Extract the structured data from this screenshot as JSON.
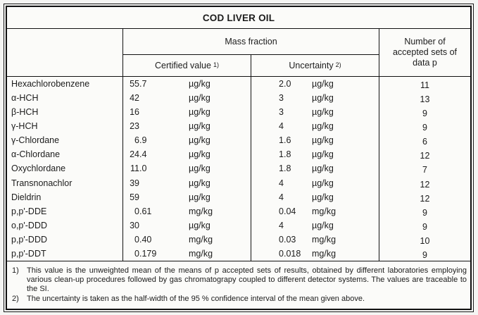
{
  "table": {
    "title": "COD LIVER OIL",
    "group_header": "Mass fraction",
    "certified_header": {
      "label": "Certified value",
      "sup": "1)"
    },
    "uncertainty_header": {
      "label": "Uncertainty",
      "sup": "2)"
    },
    "sets_header": "Number of accepted sets of data p",
    "rows": [
      {
        "name": "Hexachlorobenzene",
        "value": "55.7",
        "value_unit": "µg/kg",
        "uncertainty": "2.0",
        "uncertainty_unit": "µg/kg",
        "p": "11"
      },
      {
        "name": "α-HCH",
        "value": "42",
        "value_unit": "µg/kg",
        "uncertainty": "3",
        "uncertainty_unit": "µg/kg",
        "p": "13"
      },
      {
        "name": "β-HCH",
        "value": "16",
        "value_unit": "µg/kg",
        "uncertainty": "3",
        "uncertainty_unit": "µg/kg",
        "p": "9"
      },
      {
        "name": "γ-HCH",
        "value": "23",
        "value_unit": "µg/kg",
        "uncertainty": "4",
        "uncertainty_unit": "µg/kg",
        "p": "9"
      },
      {
        "name": "γ-Chlordane",
        "value": "6.9",
        "value_unit": "µg/kg",
        "uncertainty": "1.6",
        "uncertainty_unit": "µg/kg",
        "p": "6"
      },
      {
        "name": "α-Chlordane",
        "value": "24.4",
        "value_unit": "µg/kg",
        "uncertainty": "1.8",
        "uncertainty_unit": "µg/kg",
        "p": "12"
      },
      {
        "name": "Oxychlordane",
        "value": "11.0",
        "value_unit": "µg/kg",
        "uncertainty": "1.8",
        "uncertainty_unit": "µg/kg",
        "p": "7"
      },
      {
        "name": "Transnonachlor",
        "value": "39",
        "value_unit": "µg/kg",
        "uncertainty": "4",
        "uncertainty_unit": "µg/kg",
        "p": "12"
      },
      {
        "name": "Dieldrin",
        "value": "59",
        "value_unit": "µg/kg",
        "uncertainty": "4",
        "uncertainty_unit": "µg/kg",
        "p": "12"
      },
      {
        "name": "p,p'-DDE",
        "value": "0.61",
        "value_unit": "mg/kg",
        "uncertainty": "0.04",
        "uncertainty_unit": "mg/kg",
        "p": "9"
      },
      {
        "name": "o,p'-DDD",
        "value": "30",
        "value_unit": "µg/kg",
        "uncertainty": "4",
        "uncertainty_unit": "µg/kg",
        "p": "9"
      },
      {
        "name": "p,p'-DDD",
        "value": "0.40",
        "value_unit": "mg/kg",
        "uncertainty": "0.03",
        "uncertainty_unit": "mg/kg",
        "p": "10"
      },
      {
        "name": "p,p'-DDT",
        "value": "0.179",
        "value_unit": "mg/kg",
        "uncertainty": "0.018",
        "uncertainty_unit": "mg/kg",
        "p": "9"
      }
    ]
  },
  "footnotes": [
    {
      "marker": "1)",
      "text": "This value is the unweighted mean of the means of p accepted sets of results, obtained by different laboratories employing various clean-up procedures followed by gas chromatograpy coupled to different detector systems. The values are traceable to the SI."
    },
    {
      "marker": "2)",
      "text": "The uncertainty is taken as the half-width of the 95 % confidence interval of the mean given above."
    }
  ]
}
